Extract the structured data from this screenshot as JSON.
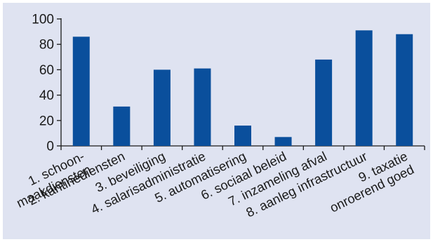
{
  "chart_data": {
    "type": "bar",
    "categories": [
      [
        "1. schoon-",
        "maakdiensten"
      ],
      [
        "2. kantinediensten"
      ],
      [
        "3. beveiliging"
      ],
      [
        "4. salarisadministratie"
      ],
      [
        "5. automatisering"
      ],
      [
        "6. sociaal beleid"
      ],
      [
        "7. inzameling afval"
      ],
      [
        "8. aanleg infrastructuur"
      ],
      [
        "9. taxatie",
        "onroerend goed"
      ]
    ],
    "values": [
      86,
      31,
      60,
      61,
      16,
      7,
      68,
      91,
      88
    ],
    "ylim": [
      0,
      100
    ],
    "yticks": [
      "0",
      "20",
      "40",
      "60",
      "80",
      "100"
    ],
    "grid": false,
    "colors": {
      "bar": "#0a4f9c",
      "background": "#dfe3f1"
    }
  }
}
